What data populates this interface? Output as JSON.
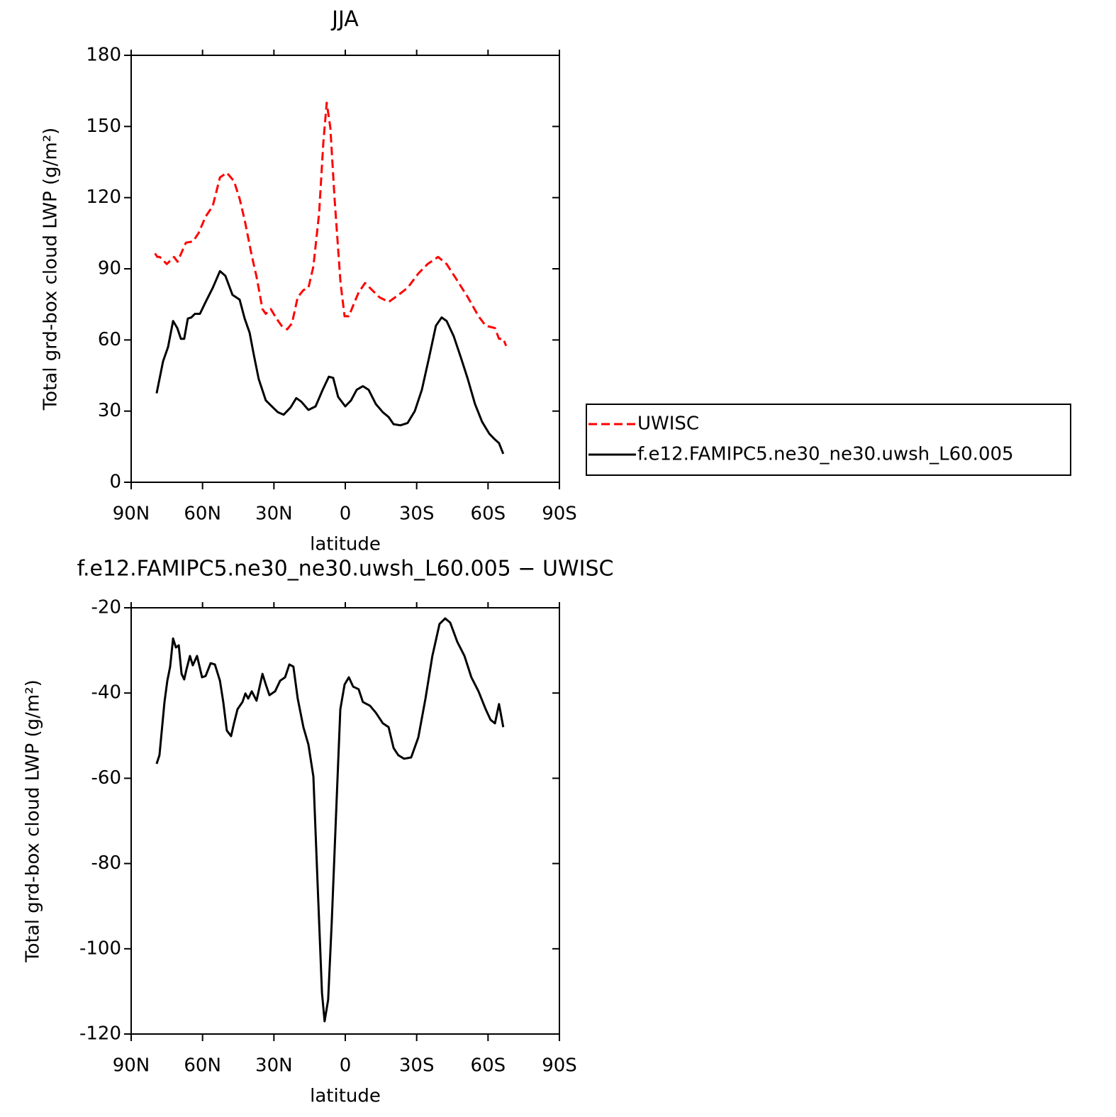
{
  "chart_data": [
    {
      "type": "line",
      "title": "JJA",
      "x_label": "latitude",
      "y_label": "Total grd-box cloud LWP (g/m²)",
      "xlim": [
        90,
        -90
      ],
      "ylim": [
        0,
        180
      ],
      "xticks": [
        {
          "value": 90,
          "label": "90N"
        },
        {
          "value": 60,
          "label": "60N"
        },
        {
          "value": 30,
          "label": "30N"
        },
        0,
        {
          "value": -30,
          "label": "30S"
        },
        {
          "value": -60,
          "label": "60S"
        },
        {
          "value": -90,
          "label": "90S"
        }
      ],
      "yticks": [
        0,
        30,
        60,
        90,
        120,
        150,
        180
      ],
      "legend": "right",
      "series": [
        {
          "name": "UWISC",
          "color": "#ff0000",
          "linestyle": "dashed",
          "x": [
            80,
            79,
            78,
            75,
            72,
            70.5,
            67,
            64,
            61.7,
            58.7,
            55.7,
            52.7,
            49.8,
            46.8,
            44.4,
            42.3,
            39.3,
            37.3,
            34.8,
            33.4,
            31.3,
            28.9,
            26.8,
            24.4,
            22.4,
            20,
            17.6,
            15.5,
            13.4,
            11,
            9.2,
            7.8,
            6.3,
            4.5,
            2,
            0.3,
            -1.5,
            -3.9,
            -5.6,
            -8.3,
            -11.3,
            -14.3,
            -18.2,
            -21.7,
            -26.2,
            -30.7,
            -34.6,
            -39,
            -42.6,
            -47.1,
            -51.5,
            -56,
            -59,
            -62.9,
            -64.6,
            -66.4,
            -67.6
          ],
          "values": [
            96.5,
            95,
            95,
            92,
            95,
            93,
            101,
            101.5,
            105,
            112,
            116.5,
            128.5,
            130.5,
            127,
            119.5,
            110.5,
            95.5,
            86.7,
            73,
            71,
            73,
            69,
            66,
            64.5,
            67,
            78,
            81,
            82,
            91,
            113.5,
            143.5,
            160,
            149.5,
            119.5,
            84,
            70,
            70,
            76,
            80,
            84,
            81,
            78,
            76,
            78.5,
            82,
            88,
            92,
            95,
            92,
            85,
            78,
            70,
            66,
            65,
            60.5,
            60.5,
            57.5
          ]
        },
        {
          "name": "f.e12.FAMIPC5.ne30_ne30.uwsh_L60.005",
          "color": "#000000",
          "linestyle": "solid",
          "x": [
            79.3,
            76.6,
            74.5,
            72.4,
            70.6,
            69.1,
            67.7,
            66.2,
            64.7,
            63.2,
            61.1,
            58.7,
            55.7,
            52.7,
            50.4,
            47.4,
            44.4,
            42.3,
            40.2,
            38.5,
            36.4,
            33.4,
            30.4,
            28.3,
            25.9,
            23,
            20.6,
            18.5,
            15.5,
            12.5,
            9.5,
            6.9,
            5.1,
            3,
            0,
            -2.4,
            -4.8,
            -7.4,
            -9.8,
            -12.8,
            -15.8,
            -18.2,
            -20.3,
            -23.2,
            -26.2,
            -29.2,
            -32.2,
            -35.2,
            -38.1,
            -40.5,
            -42.6,
            -45.6,
            -48.6,
            -51.5,
            -54.5,
            -57.5,
            -60.5,
            -62.9,
            -64.6,
            -66.4
          ],
          "values": [
            37.5,
            51,
            57,
            68,
            65,
            60.5,
            60.5,
            69,
            69.5,
            71,
            71,
            76,
            82,
            89,
            87,
            79,
            77,
            69,
            63,
            54,
            43.5,
            34.5,
            31.5,
            29.5,
            28.5,
            31.5,
            35.5,
            34,
            30.5,
            32,
            39,
            44.5,
            44,
            36,
            32,
            34.5,
            39,
            40.5,
            39,
            33,
            29.5,
            27.5,
            24.5,
            24,
            25,
            30,
            39,
            52.5,
            66,
            69.5,
            68,
            61.5,
            52.5,
            43.5,
            33,
            25.5,
            20.5,
            18,
            16.5,
            12
          ]
        }
      ]
    },
    {
      "type": "line",
      "title": "f.e12.FAMIPC5.ne30_ne30.uwsh_L60.005 − UWISC",
      "x_label": "latitude",
      "y_label": "Total grd-box cloud LWP (g/m²)",
      "xlim": [
        90,
        -90
      ],
      "ylim": [
        -120,
        -20
      ],
      "xticks": [
        {
          "value": 90,
          "label": "90N"
        },
        {
          "value": 60,
          "label": "60N"
        },
        {
          "value": 30,
          "label": "30N"
        },
        0,
        {
          "value": -30,
          "label": "30S"
        },
        {
          "value": -60,
          "label": "60S"
        },
        {
          "value": -90,
          "label": "90S"
        }
      ],
      "yticks": [
        -20,
        -40,
        -60,
        -80,
        -100,
        -120
      ],
      "series": [
        {
          "color": "#000000",
          "linestyle": "solid",
          "x": [
            79.3,
            78.1,
            76,
            74.8,
            73.6,
            72.4,
            71.2,
            70,
            68.8,
            67.7,
            66.8,
            65.3,
            64.1,
            62.3,
            60.2,
            58.7,
            56.6,
            54.8,
            52.7,
            51.3,
            49.8,
            48,
            46.8,
            45.3,
            43.2,
            42,
            40.8,
            39.3,
            37.3,
            34.8,
            33.4,
            31.9,
            29.5,
            27.4,
            25.3,
            23.5,
            21.8,
            20,
            17.6,
            15.5,
            13.4,
            11.6,
            9.8,
            8.7,
            7.2,
            5.7,
            3.9,
            2.1,
            0.3,
            -1.5,
            -3.3,
            -5.6,
            -7.4,
            -10.4,
            -12.8,
            -15.8,
            -18.2,
            -20.3,
            -22.3,
            -24.7,
            -27.7,
            -30.7,
            -33.7,
            -36.6,
            -39.6,
            -42,
            -44.1,
            -47.1,
            -50.1,
            -53,
            -56,
            -59,
            -61.1,
            -62.9,
            -64.6,
            -66.4
          ],
          "values": [
            -56.6,
            -54.6,
            -42.1,
            -37.1,
            -33.8,
            -27.2,
            -29.3,
            -28.8,
            -35.5,
            -36.8,
            -34.6,
            -31.3,
            -33.5,
            -31.3,
            -36.3,
            -36,
            -33,
            -33.3,
            -37.1,
            -42.1,
            -48.8,
            -50.1,
            -47.1,
            -43.8,
            -42.1,
            -40.1,
            -41.3,
            -39.6,
            -41.8,
            -35.5,
            -38,
            -40.5,
            -39.6,
            -37.1,
            -36.3,
            -33.3,
            -33.8,
            -41.3,
            -48,
            -52.1,
            -59.6,
            -85.4,
            -110.3,
            -117,
            -112,
            -93.7,
            -68.8,
            -43.8,
            -38,
            -36.3,
            -38.5,
            -39.1,
            -42.1,
            -43,
            -44.6,
            -47.1,
            -48,
            -52.9,
            -54.6,
            -55.4,
            -55.1,
            -50.4,
            -41.3,
            -31.3,
            -23.8,
            -22.5,
            -23.5,
            -28,
            -31.3,
            -36.3,
            -39.6,
            -43.8,
            -46.3,
            -47.1,
            -42.6,
            -48
          ]
        }
      ]
    }
  ]
}
